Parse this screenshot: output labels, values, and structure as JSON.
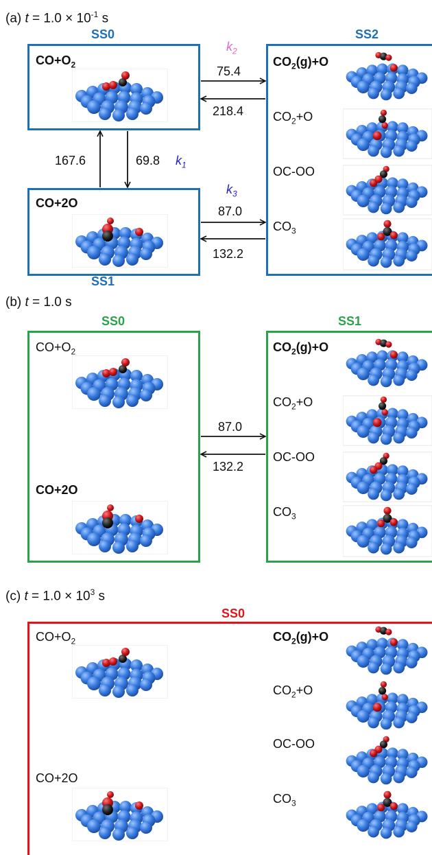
{
  "panels": {
    "a": {
      "title_prefix": "(a) ",
      "title_var": "t",
      "title_mid": " = 1.0 × 10",
      "title_exp": "-1",
      "title_unit": " s",
      "ss0": "SS0",
      "ss1": "SS1",
      "ss2": "SS2",
      "co_o2": "CO+O",
      "co_2o": "CO+2O",
      "co2g_o": "CO",
      "co2g_o_tail": "(g)+O",
      "co2_o": "CO",
      "co2_o_tail": "+O",
      "oc_oo": "OC-OO",
      "co3": "CO",
      "sub2": "2",
      "sub3": "3",
      "rates": {
        "r_75": "75.4",
        "r_218": "218.4",
        "r_167": "167.6",
        "r_69": "69.8",
        "r_87": "87.0",
        "r_132": "132.2"
      },
      "k1": "k",
      "k1_sub": "1",
      "k2": "k",
      "k2_sub": "2",
      "k3": "k",
      "k3_sub": "3"
    },
    "b": {
      "title_prefix": "(b) ",
      "title_var": "t",
      "title_rest": " = 1.0 s",
      "ss0": "SS0",
      "ss1": "SS1",
      "co_o2": "CO+O",
      "co_2o": "CO+2O",
      "co2g_o": "CO",
      "co2g_o_tail": "(g)+O",
      "co2_o": "CO",
      "co2_o_tail": "+O",
      "oc_oo": "OC-OO",
      "co3": "CO",
      "sub2": "2",
      "sub3": "3",
      "rates": {
        "r_87": "87.0",
        "r_132": "132.2"
      }
    },
    "c": {
      "title_prefix": "(c) ",
      "title_var": "t",
      "title_mid": " = 1.0 × 10",
      "title_exp": "3",
      "title_unit": " s",
      "ss0": "SS0",
      "co_o2": "CO+O",
      "co_2o": "CO+2O",
      "co2g_o": "CO",
      "co2g_o_tail": "(g)+O",
      "co2_o": "CO",
      "co2_o_tail": "+O",
      "oc_oo": "OC-OO",
      "co3": "CO",
      "sub2": "2",
      "sub3": "3"
    }
  },
  "colors": {
    "panel_a": "#1f6fb5",
    "panel_b": "#2aa24a",
    "panel_c": "#e0141c",
    "k1": "#2222cc",
    "k2": "#e066cc",
    "k3": "#2222cc",
    "atom_pt": "#3a7de0",
    "atom_o": "#c8151b",
    "atom_c": "#222222"
  },
  "icons": {
    "surface": "pt-surface-adsorbate-icon",
    "arrow": "reaction-arrow"
  }
}
